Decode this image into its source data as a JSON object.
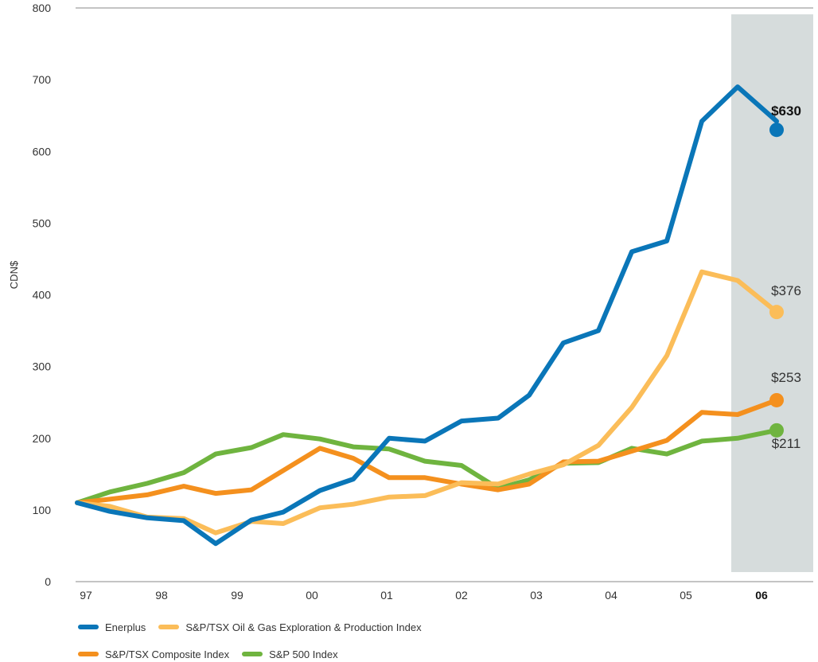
{
  "chart_data": {
    "type": "line",
    "ylabel": "CDN$",
    "ylim": [
      0,
      800
    ],
    "yticks": [
      "0",
      "100",
      "200",
      "300",
      "400",
      "500",
      "600",
      "700",
      "800"
    ],
    "year_labels": [
      "97",
      "98",
      "99",
      "00",
      "01",
      "02",
      "03",
      "04",
      "05",
      "06"
    ],
    "highlight_year_label": "06",
    "x": [
      1997.0,
      1997.33,
      1997.67,
      1998.0,
      1998.33,
      1998.67,
      1999.0,
      1999.33,
      1999.67,
      2000.0,
      2000.33,
      2000.67,
      2001.0,
      2001.33,
      2001.67,
      2002.0,
      2002.33,
      2002.67,
      2003.0,
      2003.33,
      2003.67,
      2004.0,
      2004.33,
      2004.67,
      2005.0,
      2005.33,
      2005.67
    ],
    "highlight_x_range": [
      2005.2,
      2005.75
    ],
    "series": [
      {
        "name": "Enerplus",
        "color": "#0a76b8",
        "values": [
          110,
          98,
          89,
          85,
          53,
          86,
          97,
          127,
          143,
          200,
          196,
          224,
          228,
          260,
          333,
          350,
          460,
          475,
          642,
          690,
          642,
          630,
          null,
          null,
          null,
          null,
          null
        ],
        "end_label": "$630",
        "end_value": 630
      },
      {
        "name": "S&P/TSX Oil & Gas Exploration & Production Index",
        "color": "#fbbd59",
        "values": [
          110,
          105,
          90,
          88,
          68,
          84,
          81,
          103,
          108,
          118,
          120,
          138,
          136,
          150,
          163,
          190,
          243,
          315,
          432,
          420,
          376,
          null,
          null,
          null,
          null,
          null,
          null
        ],
        "end_label": "$376",
        "end_value": 376
      },
      {
        "name": "S&P/TSX Composite Index",
        "color": "#f4901e",
        "values": [
          110,
          115,
          121,
          133,
          123,
          128,
          155,
          186,
          172,
          145,
          145,
          136,
          128,
          136,
          167,
          168,
          182,
          197,
          236,
          233,
          253,
          null,
          null,
          null,
          null,
          null,
          null
        ],
        "end_label": "$253",
        "end_value": 253
      },
      {
        "name": "S&P 500 Index",
        "color": "#6fb43f",
        "values": [
          110,
          125,
          137,
          152,
          178,
          187,
          205,
          199,
          188,
          185,
          168,
          162,
          130,
          142,
          165,
          166,
          186,
          178,
          196,
          200,
          211,
          null,
          null,
          null,
          null,
          null,
          null
        ],
        "end_label": "$211",
        "end_value": 211
      }
    ]
  }
}
